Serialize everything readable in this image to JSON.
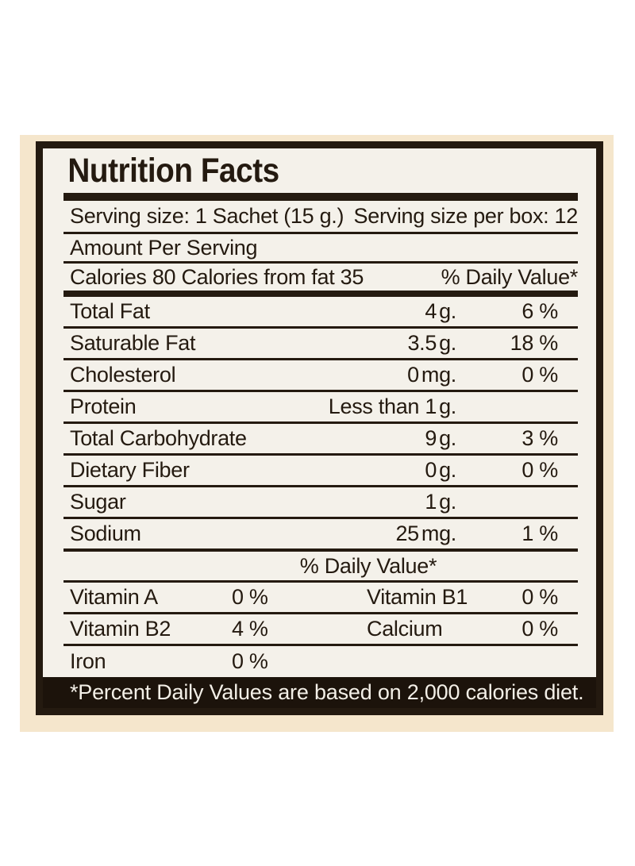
{
  "label": {
    "title": "Nutrition Facts",
    "serving_row": {
      "serving_size": "Serving size: 1 Sachet (15 g.)",
      "servings_per_box": "Serving size per box: 12"
    },
    "amount_per_serving": "Amount Per Serving",
    "calories_row": {
      "calories": "Calories 80 Calories from fat 35",
      "daily_value_label": "% Daily Value*"
    },
    "nutrients": [
      {
        "name": "Total Fat",
        "amount": "4",
        "unit": "g.",
        "dv": "6 %"
      },
      {
        "name": "Saturable Fat",
        "amount": "3.5",
        "unit": "g.",
        "dv": "18 %"
      },
      {
        "name": "Cholesterol",
        "amount": "0",
        "unit": "mg.",
        "dv": "0 %"
      },
      {
        "name": "Protein",
        "amount": "Less than 1",
        "unit": "g.",
        "dv": ""
      },
      {
        "name": "Total Carbohydrate",
        "amount": "9",
        "unit": "g.",
        "dv": "3 %"
      },
      {
        "name": "Dietary Fiber",
        "amount": "0",
        "unit": "g.",
        "dv": "0 %"
      },
      {
        "name": "Sugar",
        "amount": "1",
        "unit": "g.",
        "dv": ""
      },
      {
        "name": "Sodium",
        "amount": "25",
        "unit": "mg.",
        "dv": "1 %"
      }
    ],
    "daily_value_header": "% Daily Value*",
    "vitamins": [
      {
        "name": "Vitamin A",
        "value": "0 %"
      },
      {
        "name": "Vitamin B1",
        "value": "0 %"
      },
      {
        "name": "Vitamin B2",
        "value": "4 %"
      },
      {
        "name": "Calcium",
        "value": "0 %"
      },
      {
        "name": "Iron",
        "value": "0 %"
      }
    ],
    "footnote": "*Percent Daily Values are based on 2,000 calories diet."
  },
  "colors": {
    "page_background": "#ffffff",
    "paper_background": "#f5e6cc",
    "label_background": "#f4f1ea",
    "ink": "#241a10",
    "footnote_background": "#1c130b",
    "footnote_text": "#f3efe7"
  }
}
